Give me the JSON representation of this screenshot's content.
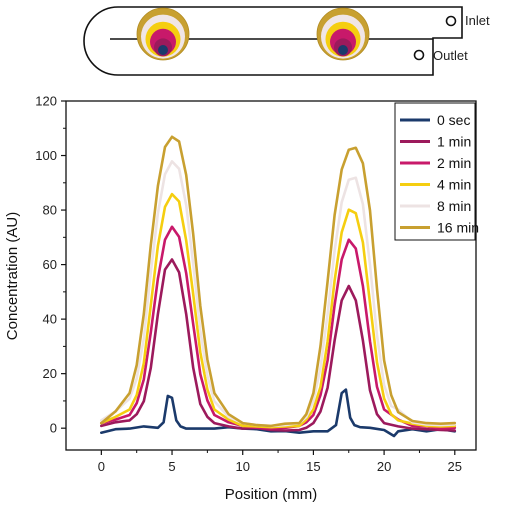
{
  "schematic": {
    "inlet_label": "Inlet",
    "outlet_label": "Outlet",
    "ring_colors": [
      "#C8A030",
      "#F0E6E6",
      "#F5CE10",
      "#C8196A",
      "#9C1A5C",
      "#1B3A6B"
    ]
  },
  "chart_data": {
    "type": "line",
    "xlabel": "Position (mm)",
    "ylabel": "Concentration (AU)",
    "xlim": [
      -2.5,
      26.5
    ],
    "ylim": [
      -8,
      120
    ],
    "xticks": [
      0,
      5,
      10,
      15,
      20,
      25
    ],
    "yticks": [
      0,
      20,
      40,
      60,
      80,
      100,
      120
    ],
    "grid": false,
    "legend_position": "top-right",
    "series": [
      {
        "name": "0 sec",
        "color": "#1B3A6B",
        "x": [
          0,
          1,
          2,
          3,
          4,
          4.4,
          4.7,
          5.0,
          5.3,
          5.6,
          6,
          7,
          8,
          9,
          10,
          11,
          12,
          13,
          14,
          15,
          16,
          16.6,
          17.0,
          17.3,
          17.6,
          17.9,
          18.3,
          19,
          20,
          20.7,
          21,
          22,
          23,
          24,
          25
        ],
        "y": [
          -1.5,
          -0.5,
          0,
          0.5,
          0.3,
          2,
          12,
          11,
          3,
          0.5,
          0,
          -0.3,
          0,
          0.2,
          0,
          -0.5,
          -1,
          -1.2,
          -1.5,
          -1.3,
          -1,
          1,
          13,
          14,
          4,
          1,
          0.5,
          0,
          -0.5,
          -3,
          -1,
          -0.5,
          -1,
          -0.5,
          -1
        ]
      },
      {
        "name": "1 min",
        "color": "#9C1A5C",
        "x": [
          0,
          1,
          2,
          2.5,
          3,
          3.5,
          4,
          4.5,
          5,
          5.5,
          6,
          6.5,
          7,
          7.5,
          8,
          9,
          10,
          11,
          12,
          13,
          14,
          14.5,
          15,
          15.5,
          16,
          16.5,
          17,
          17.5,
          18,
          18.5,
          19,
          19.5,
          20,
          21,
          22,
          23,
          24,
          25
        ],
        "y": [
          1,
          2,
          3,
          5,
          10,
          22,
          42,
          58,
          62,
          57,
          42,
          22,
          9,
          4,
          2,
          0.5,
          0,
          0,
          -0.5,
          -1,
          -0.5,
          0,
          2,
          6,
          15,
          32,
          47,
          52,
          47,
          32,
          14,
          5,
          2,
          0.5,
          0,
          -0.5,
          -0.5,
          -1
        ]
      },
      {
        "name": "2 min",
        "color": "#C8196A",
        "x": [
          0,
          1,
          2,
          2.5,
          3,
          3.5,
          4,
          4.5,
          5,
          5.5,
          6,
          6.5,
          7,
          7.5,
          8,
          9,
          10,
          11,
          12,
          13,
          14,
          14.5,
          15,
          15.5,
          16,
          16.5,
          17,
          17.5,
          18,
          18.5,
          19,
          19.5,
          20,
          21,
          22,
          23,
          24,
          25
        ],
        "y": [
          2,
          3,
          5,
          9,
          18,
          35,
          55,
          69,
          74,
          70,
          57,
          38,
          20,
          10,
          5,
          2,
          1,
          0,
          0,
          0,
          1,
          2,
          5,
          12,
          25,
          45,
          62,
          69,
          66,
          52,
          32,
          15,
          7,
          3,
          1,
          0.5,
          0,
          0
        ]
      },
      {
        "name": "4 min",
        "color": "#F5CE10",
        "x": [
          0,
          1,
          2,
          2.5,
          3,
          3.5,
          4,
          4.5,
          5,
          5.5,
          6,
          6.5,
          7,
          7.5,
          8,
          9,
          10,
          11,
          12,
          13,
          14,
          14.5,
          15,
          15.5,
          16,
          16.5,
          17,
          17.5,
          18,
          18.5,
          19,
          19.5,
          20,
          20.5,
          21,
          22,
          23,
          24,
          25
        ],
        "y": [
          2,
          4,
          7,
          12,
          24,
          45,
          67,
          81,
          86,
          83,
          69,
          49,
          28,
          14,
          7,
          3,
          1,
          0.5,
          0.5,
          0.5,
          1,
          3,
          7,
          15,
          32,
          54,
          72,
          80,
          79,
          68,
          46,
          24,
          11,
          5,
          3,
          1.5,
          1,
          0.5,
          1
        ]
      },
      {
        "name": "8 min",
        "color": "#EDE3E3",
        "x": [
          0,
          1,
          2,
          2.5,
          3,
          3.5,
          4,
          4.5,
          5,
          5.5,
          6,
          6.5,
          7,
          7.5,
          8,
          9,
          10,
          11,
          12,
          13,
          14,
          14.5,
          15,
          15.5,
          16,
          16.5,
          17,
          17.5,
          18,
          18.5,
          19,
          19.5,
          20,
          20.5,
          21,
          22,
          23,
          24,
          25
        ],
        "y": [
          3,
          6,
          11,
          18,
          33,
          57,
          79,
          93,
          98,
          95,
          82,
          60,
          36,
          19,
          10,
          4,
          2,
          1,
          1,
          1,
          2,
          4,
          10,
          22,
          42,
          65,
          83,
          91,
          92,
          82,
          60,
          34,
          16,
          8,
          7,
          2,
          1.5,
          1,
          1.5
        ]
      },
      {
        "name": "16 min",
        "color": "#C8A030",
        "x": [
          0,
          1,
          2,
          2.5,
          3,
          3.5,
          4,
          4.5,
          5,
          5.5,
          6,
          6.5,
          7,
          7.5,
          8,
          9,
          10,
          11,
          12,
          13,
          14,
          14.5,
          15,
          15.5,
          16,
          16.5,
          17,
          17.5,
          18,
          18.5,
          19,
          19.5,
          20,
          20.5,
          21,
          22,
          23,
          24,
          25
        ],
        "y": [
          2,
          6,
          13,
          23,
          42,
          67,
          89,
          103,
          107,
          105,
          93,
          71,
          45,
          25,
          13,
          5,
          2,
          1,
          1,
          1.5,
          2,
          5,
          13,
          30,
          54,
          78,
          95,
          102,
          103,
          97,
          80,
          51,
          25,
          12,
          6,
          2.5,
          2,
          1.5,
          2
        ]
      }
    ]
  }
}
